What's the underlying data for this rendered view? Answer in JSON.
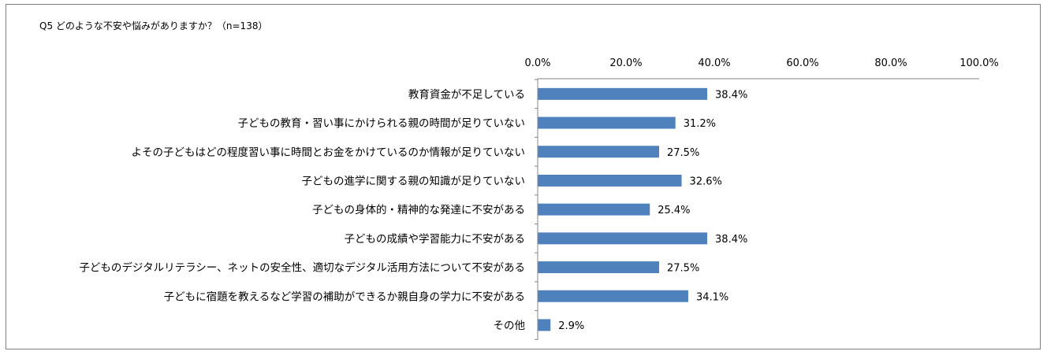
{
  "chart_data": {
    "type": "bar",
    "orientation": "horizontal",
    "title": "Q5 どのような不安や悩みがありますか？（n=138）",
    "xlabel": "",
    "ylabel": "",
    "xlim": [
      0,
      100
    ],
    "x_ticks": [
      "0.0%",
      "20.0%",
      "40.0%",
      "60.0%",
      "80.0%",
      "100.0%"
    ],
    "x_tick_values": [
      0,
      20,
      40,
      60,
      80,
      100
    ],
    "axis_position": "top",
    "grid": false,
    "bar_color": "#4f81bd",
    "categories": [
      "教育資金が不足している",
      "子どもの教育・習い事にかけられる親の時間が足りていない",
      "よその子どもはどの程度習い事に時間とお金をかけているのか情報が足りていない",
      "子どもの進学に関する親の知識が足りていない",
      "子どもの身体的・精神的な発達に不安がある",
      "子どもの成績や学習能力に不安がある",
      "子どものデジタルリテラシー、ネットの安全性、適切なデジタル活用方法について不安がある",
      "子どもに宿題を教えるなど学習の補助ができるか親自身の学力に不安がある",
      "その他"
    ],
    "values": [
      38.4,
      31.2,
      27.5,
      32.6,
      25.4,
      38.4,
      27.5,
      34.1,
      2.9
    ],
    "value_labels": [
      "38.4%",
      "31.2%",
      "27.5%",
      "32.6%",
      "25.4%",
      "38.4%",
      "27.5%",
      "34.1%",
      "2.9%"
    ]
  }
}
